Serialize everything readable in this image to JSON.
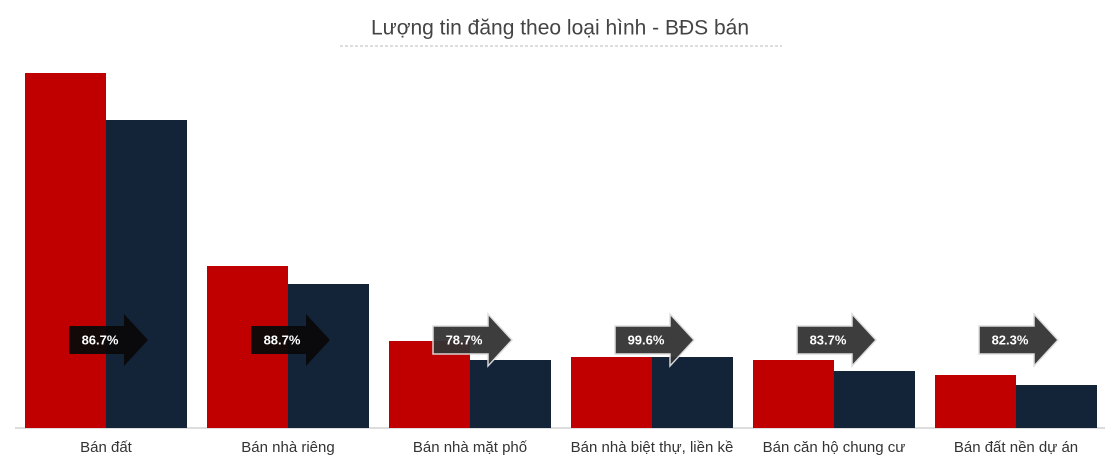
{
  "chart_data": {
    "type": "bar",
    "title": "Lượng tin đăng theo loại hình - BĐS bán",
    "categories": [
      "Bán đất",
      "Bán nhà riêng",
      "Bán nhà mặt phố",
      "Bán nhà biệt thự, liền kề",
      "Bán căn hộ chung cư",
      "Bán đất nền dự án"
    ],
    "series": [
      {
        "color": "#c00000",
        "values": [
          355,
          162,
          87,
          71,
          68,
          53
        ]
      },
      {
        "color": "#132438",
        "values": [
          308,
          144,
          68,
          71,
          57,
          43
        ]
      }
    ],
    "ratios": [
      86.7,
      88.7,
      78.7,
      99.6,
      83.7,
      82.3
    ],
    "ratio_labels": [
      "86.7%",
      "88.7%",
      "78.7%",
      "99.6%",
      "83.7%",
      "82.3%"
    ]
  }
}
